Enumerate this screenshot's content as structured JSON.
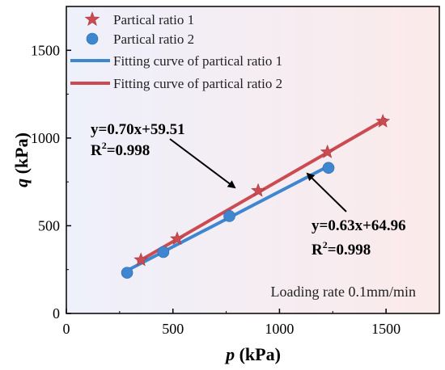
{
  "chart_data": {
    "type": "scatter",
    "xlabel": {
      "var": "p",
      "unit": " (kPa)"
    },
    "ylabel": {
      "var": "q",
      "unit": " (kPa)"
    },
    "xlim": [
      0,
      1750
    ],
    "ylim": [
      0,
      1750
    ],
    "xticks": [
      0,
      500,
      1000,
      1500
    ],
    "yticks": [
      0,
      500,
      1000,
      1500
    ],
    "grid": false,
    "legend_position": "top-left",
    "series": [
      {
        "name": "Partical ratio 1",
        "marker": "star",
        "color": "#cc4b52",
        "points": [
          [
            350,
            305
          ],
          [
            520,
            425
          ],
          [
            900,
            700
          ],
          [
            1225,
            920
          ],
          [
            1485,
            1095
          ]
        ]
      },
      {
        "name": "Partical ratio 2",
        "marker": "circle",
        "color": "#3f86d0",
        "points": [
          [
            285,
            232
          ],
          [
            455,
            350
          ],
          [
            765,
            555
          ],
          [
            1230,
            830
          ]
        ]
      }
    ],
    "fits": [
      {
        "name": "Fitting curve of partical ratio 1",
        "color": "#3f86d0",
        "slope": 0.63,
        "intercept": 64.96,
        "x_range": [
          285,
          1230
        ],
        "equation": "y=0.63x+64.96",
        "r2_value": "=0.998"
      },
      {
        "name": "Fitting curve of partical ratio 2",
        "color": "#cc4b52",
        "slope": 0.7,
        "intercept": 59.51,
        "x_range": [
          340,
          1495
        ],
        "equation": "y=0.70x+59.51",
        "r2_value": "=0.998"
      }
    ],
    "annotations": {
      "r2_label": "R",
      "r2_sup": "2",
      "note": "Loading rate 0.1mm/min"
    },
    "colors": {
      "background_left": "#eef0fb",
      "background_right": "#fbeaea"
    }
  }
}
